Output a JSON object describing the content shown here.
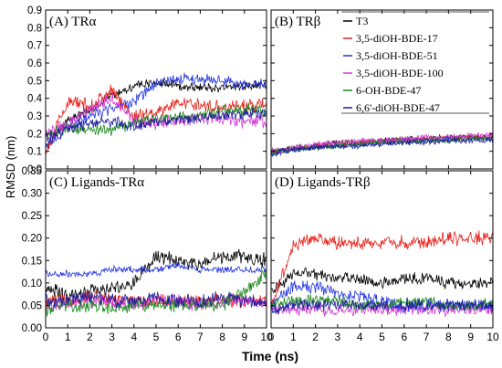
{
  "figure": {
    "xlabel": "Time (ns)",
    "ylabel": "RMSD (nm)",
    "colors": {
      "T3": "#000000",
      "3,5-diOH-BDE-17": "#e8221c",
      "3,5-diOH-BDE-51": "#2233e0",
      "3,5-diOH-BDE-100": "#d63ad6",
      "6-OH-BDE-47": "#1a8a1a",
      "6,6'-diOH-BDE-47": "#1c1c9a"
    }
  },
  "chart_data": [
    {
      "type": "line",
      "title": "(A) TRα",
      "panel": "A",
      "xlim": [
        0,
        10
      ],
      "ylim": [
        0,
        0.9
      ],
      "xticks": [
        "0",
        "1",
        "2",
        "3",
        "4",
        "5",
        "6",
        "7",
        "8",
        "9",
        "10"
      ],
      "yticks": [
        "0.0",
        "0.1",
        "0.2",
        "0.3",
        "0.4",
        "0.5",
        "0.6",
        "0.7",
        "0.8",
        "0.9"
      ],
      "x": [
        0,
        1,
        2,
        3,
        4,
        5,
        6,
        7,
        8,
        9,
        10
      ],
      "series": [
        {
          "name": "T3",
          "values": [
            0.12,
            0.28,
            0.33,
            0.42,
            0.47,
            0.49,
            0.47,
            0.46,
            0.46,
            0.47,
            0.48
          ],
          "noise": 0.02
        },
        {
          "name": "3,5-diOH-BDE-17",
          "values": [
            0.1,
            0.38,
            0.36,
            0.44,
            0.3,
            0.32,
            0.38,
            0.36,
            0.35,
            0.36,
            0.36
          ],
          "noise": 0.03
        },
        {
          "name": "3,5-diOH-BDE-51",
          "values": [
            0.12,
            0.24,
            0.3,
            0.34,
            0.38,
            0.48,
            0.51,
            0.51,
            0.5,
            0.48,
            0.48
          ],
          "noise": 0.025
        },
        {
          "name": "3,5-diOH-BDE-100",
          "values": [
            0.2,
            0.25,
            0.34,
            0.4,
            0.28,
            0.26,
            0.27,
            0.29,
            0.28,
            0.27,
            0.27
          ],
          "noise": 0.03
        },
        {
          "name": "6-OH-BDE-47",
          "values": [
            0.2,
            0.23,
            0.22,
            0.22,
            0.26,
            0.29,
            0.29,
            0.3,
            0.33,
            0.34,
            0.33
          ],
          "noise": 0.025
        },
        {
          "name": "6,6'-diOH-BDE-47",
          "values": [
            0.18,
            0.23,
            0.26,
            0.27,
            0.24,
            0.26,
            0.28,
            0.29,
            0.3,
            0.32,
            0.31
          ],
          "noise": 0.025
        }
      ]
    },
    {
      "type": "line",
      "title": "(B) TRβ",
      "panel": "B",
      "xlim": [
        0,
        10
      ],
      "ylim": [
        0,
        0.9
      ],
      "xticks": [
        "0",
        "1",
        "2",
        "3",
        "4",
        "5",
        "6",
        "7",
        "8",
        "9",
        "10"
      ],
      "yticks": [
        "0.0",
        "0.1",
        "0.2",
        "0.3",
        "0.4",
        "0.5",
        "0.6",
        "0.7",
        "0.8",
        "0.9"
      ],
      "x": [
        0,
        1,
        2,
        3,
        4,
        5,
        6,
        7,
        8,
        9,
        10
      ],
      "legend": [
        "T3",
        "3,5-diOH-BDE-17",
        "3,5-diOH-BDE-51",
        "3,5-diOH-BDE-100",
        "6-OH-BDE-47",
        "6,6'-diOH-BDE-47"
      ],
      "series": [
        {
          "name": "T3",
          "values": [
            0.1,
            0.12,
            0.13,
            0.15,
            0.15,
            0.16,
            0.17,
            0.17,
            0.18,
            0.18,
            0.18
          ],
          "noise": 0.012
        },
        {
          "name": "3,5-diOH-BDE-17",
          "values": [
            0.09,
            0.12,
            0.13,
            0.14,
            0.15,
            0.16,
            0.16,
            0.17,
            0.17,
            0.18,
            0.18
          ],
          "noise": 0.012
        },
        {
          "name": "3,5-diOH-BDE-51",
          "values": [
            0.08,
            0.11,
            0.12,
            0.13,
            0.14,
            0.15,
            0.16,
            0.16,
            0.17,
            0.17,
            0.17
          ],
          "noise": 0.012
        },
        {
          "name": "3,5-diOH-BDE-100",
          "values": [
            0.1,
            0.12,
            0.14,
            0.15,
            0.16,
            0.16,
            0.17,
            0.18,
            0.18,
            0.19,
            0.19
          ],
          "noise": 0.012
        },
        {
          "name": "6-OH-BDE-47",
          "values": [
            0.09,
            0.11,
            0.12,
            0.13,
            0.14,
            0.15,
            0.15,
            0.16,
            0.16,
            0.17,
            0.17
          ],
          "noise": 0.012
        },
        {
          "name": "6,6'-diOH-BDE-47",
          "values": [
            0.09,
            0.11,
            0.12,
            0.13,
            0.13,
            0.14,
            0.15,
            0.15,
            0.16,
            0.16,
            0.16
          ],
          "noise": 0.012
        }
      ]
    },
    {
      "type": "line",
      "title": "(C) Ligands-TRα",
      "panel": "C",
      "xlim": [
        0,
        10
      ],
      "ylim": [
        0,
        0.35
      ],
      "xticks": [
        "0",
        "1",
        "2",
        "3",
        "4",
        "5",
        "6",
        "7",
        "8",
        "9",
        "10"
      ],
      "yticks": [
        "0.00",
        "0.05",
        "0.10",
        "0.15",
        "0.20",
        "0.25",
        "0.30",
        "0.35"
      ],
      "x": [
        0,
        1,
        2,
        3,
        4,
        5,
        6,
        7,
        8,
        9,
        10
      ],
      "series": [
        {
          "name": "T3",
          "values": [
            0.09,
            0.07,
            0.08,
            0.09,
            0.1,
            0.16,
            0.15,
            0.14,
            0.16,
            0.16,
            0.15
          ],
          "noise": 0.012
        },
        {
          "name": "3,5-diOH-BDE-17",
          "values": [
            0.06,
            0.06,
            0.07,
            0.06,
            0.06,
            0.06,
            0.06,
            0.06,
            0.06,
            0.06,
            0.06
          ],
          "noise": 0.012
        },
        {
          "name": "3,5-diOH-BDE-51",
          "values": [
            0.12,
            0.12,
            0.12,
            0.13,
            0.13,
            0.13,
            0.14,
            0.13,
            0.13,
            0.13,
            0.13
          ],
          "noise": 0.006
        },
        {
          "name": "3,5-diOH-BDE-100",
          "values": [
            0.05,
            0.05,
            0.06,
            0.06,
            0.05,
            0.06,
            0.06,
            0.05,
            0.06,
            0.06,
            0.05
          ],
          "noise": 0.012
        },
        {
          "name": "6-OH-BDE-47",
          "values": [
            0.04,
            0.05,
            0.05,
            0.04,
            0.05,
            0.05,
            0.05,
            0.05,
            0.05,
            0.08,
            0.12
          ],
          "noise": 0.012
        },
        {
          "name": "6,6'-diOH-BDE-47",
          "values": [
            0.06,
            0.06,
            0.07,
            0.06,
            0.06,
            0.07,
            0.06,
            0.06,
            0.07,
            0.06,
            0.06
          ],
          "noise": 0.012
        }
      ]
    },
    {
      "type": "line",
      "title": "(D) Ligands-TRβ",
      "panel": "D",
      "xlim": [
        0,
        10
      ],
      "ylim": [
        0,
        0.35
      ],
      "xticks": [
        "0",
        "1",
        "2",
        "3",
        "4",
        "5",
        "6",
        "7",
        "8",
        "9",
        "10"
      ],
      "yticks": [
        "0.00",
        "0.05",
        "0.10",
        "0.15",
        "0.20",
        "0.25",
        "0.30",
        "0.35"
      ],
      "x": [
        0,
        1,
        2,
        3,
        4,
        5,
        6,
        7,
        8,
        9,
        10
      ],
      "series": [
        {
          "name": "T3",
          "values": [
            0.08,
            0.12,
            0.12,
            0.11,
            0.11,
            0.1,
            0.11,
            0.11,
            0.1,
            0.1,
            0.1
          ],
          "noise": 0.01
        },
        {
          "name": "3,5-diOH-BDE-17",
          "values": [
            0.05,
            0.18,
            0.2,
            0.19,
            0.19,
            0.19,
            0.19,
            0.19,
            0.2,
            0.2,
            0.2
          ],
          "noise": 0.012
        },
        {
          "name": "3,5-diOH-BDE-51",
          "values": [
            0.05,
            0.09,
            0.09,
            0.08,
            0.07,
            0.06,
            0.05,
            0.05,
            0.05,
            0.05,
            0.05
          ],
          "noise": 0.012
        },
        {
          "name": "3,5-diOH-BDE-100",
          "values": [
            0.04,
            0.04,
            0.04,
            0.04,
            0.04,
            0.04,
            0.04,
            0.04,
            0.04,
            0.04,
            0.04
          ],
          "noise": 0.01
        },
        {
          "name": "6-OH-BDE-47",
          "values": [
            0.05,
            0.06,
            0.06,
            0.06,
            0.05,
            0.05,
            0.06,
            0.06,
            0.05,
            0.05,
            0.05
          ],
          "noise": 0.01
        },
        {
          "name": "6,6'-diOH-BDE-47",
          "values": [
            0.04,
            0.05,
            0.05,
            0.05,
            0.05,
            0.05,
            0.05,
            0.05,
            0.05,
            0.05,
            0.05
          ],
          "noise": 0.01
        }
      ]
    }
  ]
}
